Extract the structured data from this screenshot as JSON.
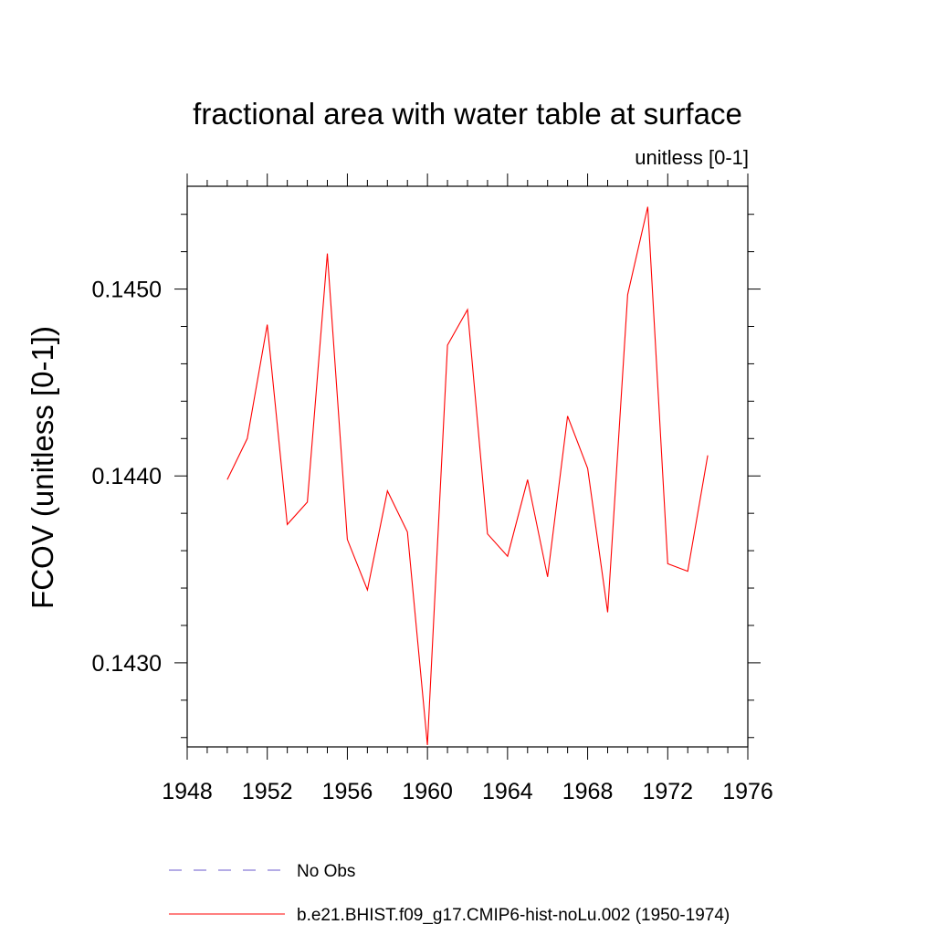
{
  "chart_data": {
    "type": "line",
    "title": "fractional area with water table at surface",
    "units_label": "unitless [0-1]",
    "xlabel": "",
    "ylabel": "FCOV  (unitless [0-1])",
    "xlim": [
      1948,
      1976
    ],
    "ylim": [
      0.14255,
      0.14555
    ],
    "x_ticks": [
      "1948",
      "1952",
      "1956",
      "1960",
      "1964",
      "1968",
      "1972",
      "1976"
    ],
    "y_ticks": [
      "0.1430",
      "0.1440",
      "0.1450"
    ],
    "grid": false,
    "legend_position": "bottom",
    "legend": [
      {
        "label": "No Obs",
        "color": "#6a5acd",
        "style": "dashed"
      },
      {
        "label": "b.e21.BHIST.f09_g17.CMIP6-hist-noLu.002 (1950-1974)",
        "color": "#ff0000",
        "style": "solid"
      }
    ],
    "series": [
      {
        "name": "b.e21.BHIST.f09_g17.CMIP6-hist-noLu.002 (1950-1974)",
        "color": "#ff0000",
        "x": [
          1950,
          1951,
          1952,
          1953,
          1954,
          1955,
          1956,
          1957,
          1958,
          1959,
          1960,
          1961,
          1962,
          1963,
          1964,
          1965,
          1966,
          1967,
          1968,
          1969,
          1970,
          1971,
          1972,
          1973,
          1974
        ],
        "y": [
          0.14398,
          0.1442,
          0.14481,
          0.14374,
          0.14386,
          0.14519,
          0.14366,
          0.14339,
          0.14392,
          0.1437,
          0.14256,
          0.1447,
          0.14489,
          0.14369,
          0.14357,
          0.14398,
          0.14346,
          0.14432,
          0.14404,
          0.14327,
          0.14497,
          0.14544,
          0.14353,
          0.14349,
          0.14411
        ]
      }
    ]
  }
}
